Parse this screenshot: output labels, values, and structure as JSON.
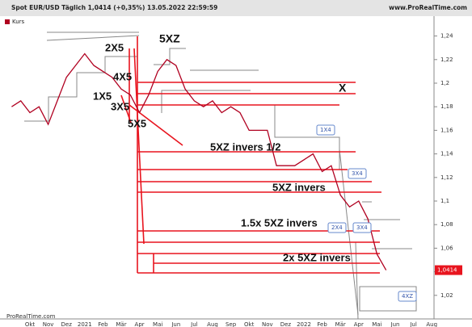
{
  "header": {
    "title": "Spot EUR/USD Täglich 1,0414 (+0,35%) 13.05.2022 22:59:59",
    "site": "www.ProRealTime.com"
  },
  "footer": "ProRealTime.com",
  "chart_data": {
    "type": "line",
    "legend": "Kurs",
    "categories": [
      null,
      null,
      "Okt",
      null,
      "Nov",
      null,
      "Dez",
      null,
      "2021",
      null,
      "Feb",
      null,
      "Mär",
      null,
      "Apr",
      null,
      "Mai",
      null,
      "Jun",
      null,
      "Jul",
      null,
      "Aug",
      null,
      "Sep",
      null,
      "Okt",
      null,
      "Nov",
      null,
      "Dez",
      null,
      "2022",
      null,
      "Feb",
      null,
      "Mär",
      null,
      "Apr",
      null,
      "Mai",
      null,
      "Jun",
      null,
      "Jul",
      null,
      "Aug"
    ],
    "series": [
      {
        "name": "Kurs",
        "color": "#b00020",
        "values": [
          1.18,
          1.185,
          1.175,
          1.18,
          1.165,
          1.185,
          1.205,
          1.215,
          1.225,
          1.215,
          1.21,
          1.205,
          1.195,
          1.19,
          1.175,
          1.19,
          1.21,
          1.22,
          1.215,
          1.195,
          1.185,
          1.18,
          1.185,
          1.175,
          1.18,
          1.175,
          1.16,
          1.16,
          1.16,
          1.13,
          1.13,
          1.13,
          1.135,
          1.14,
          1.125,
          1.13,
          1.105,
          1.095,
          1.1,
          1.085,
          1.055,
          1.0414,
          null,
          null,
          null,
          null,
          null
        ]
      }
    ],
    "last_price": {
      "value": 1.0414,
      "label": "1,0414"
    },
    "ylim": [
      1.0,
      1.25
    ],
    "yticks": [
      {
        "value": 1.02,
        "label": "1,02"
      },
      {
        "value": 1.04,
        "label": "1,04"
      },
      {
        "value": 1.06,
        "label": "1,06"
      },
      {
        "value": 1.08,
        "label": "1,08"
      },
      {
        "value": 1.1,
        "label": "1,1"
      },
      {
        "value": 1.12,
        "label": "1,12"
      },
      {
        "value": 1.14,
        "label": "1,14"
      },
      {
        "value": 1.16,
        "label": "1,16"
      },
      {
        "value": 1.18,
        "label": "1,18"
      },
      {
        "value": 1.2,
        "label": "1,2"
      },
      {
        "value": 1.22,
        "label": "1,22"
      },
      {
        "value": 1.24,
        "label": "1,24"
      }
    ],
    "annotations": [
      "2X5",
      "5XZ",
      "4X5",
      "1X5",
      "3X5",
      "5X5",
      "X",
      "5XZ invers 1/2",
      "5XZ invers",
      "1.5x 5XZ invers",
      "2x 5XZ invers",
      "1X4",
      "3X4",
      "2X4",
      "3X4",
      "4XZ"
    ]
  }
}
